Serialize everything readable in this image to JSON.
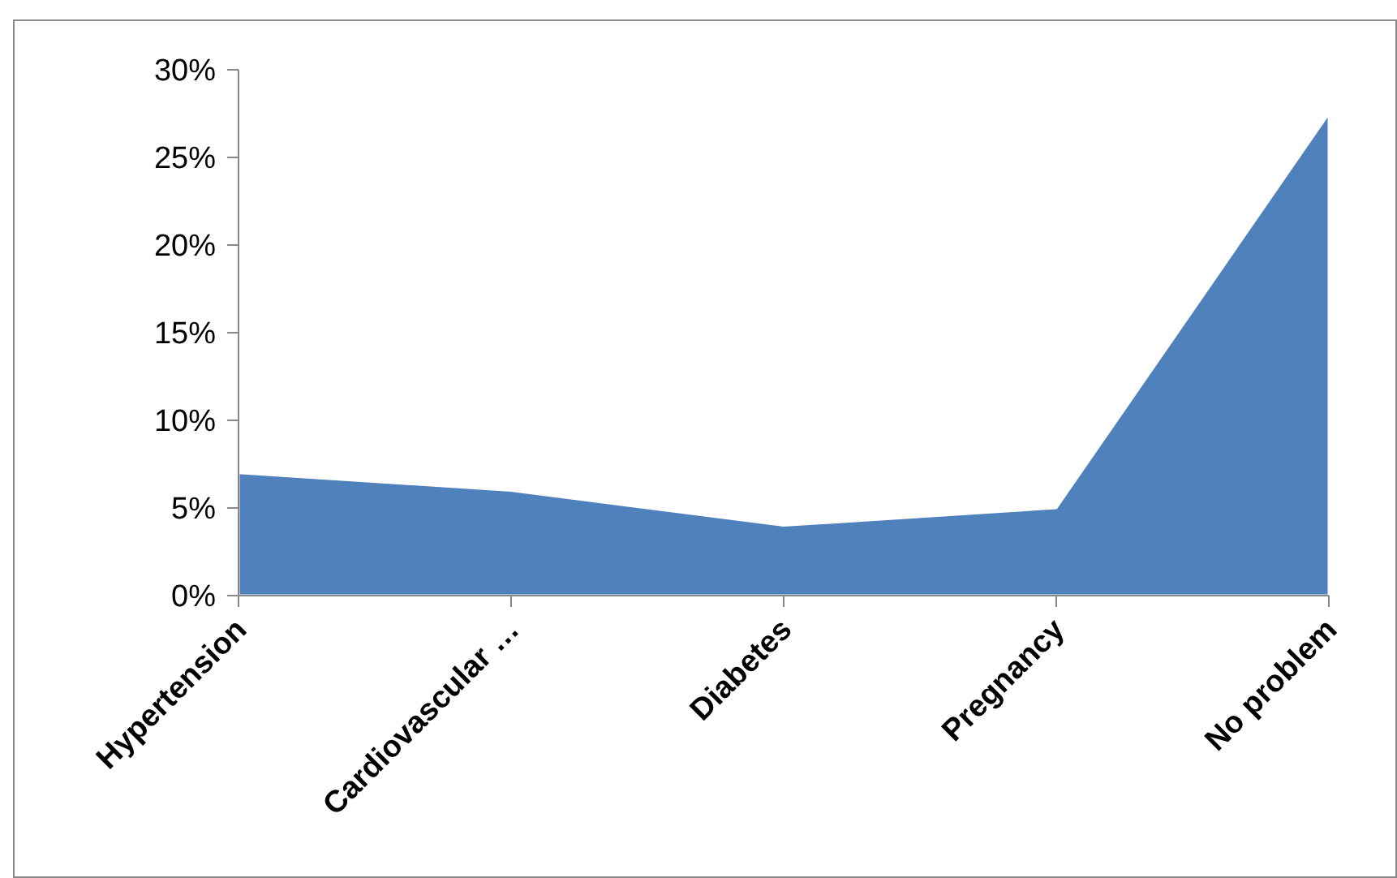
{
  "chart_data": {
    "type": "area",
    "categories": [
      "Hypertension",
      "Cardiovascular …",
      "Diabetes",
      "Pregnancy",
      "No problem"
    ],
    "series": [
      {
        "color": "#4f81bd",
        "values": [
          7,
          6,
          4,
          5,
          27.5
        ]
      }
    ],
    "ylim": [
      0,
      30
    ],
    "yticks": [
      {
        "value": 0,
        "label": "0%"
      },
      {
        "value": 5,
        "label": "5%"
      },
      {
        "value": 10,
        "label": "10%"
      },
      {
        "value": 15,
        "label": "15%"
      },
      {
        "value": 20,
        "label": "20%"
      },
      {
        "value": 25,
        "label": "25%"
      },
      {
        "value": 30,
        "label": "30%"
      }
    ]
  }
}
